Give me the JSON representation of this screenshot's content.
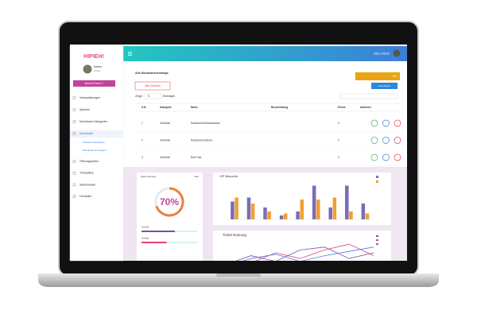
{
  "sidebar": {
    "logo": "HIPIEH!",
    "user": "Admin",
    "status": "Online",
    "button": "Neues Event +",
    "items": [
      "Veranstaltungen",
      "Speisen",
      "Menükarte Kategorien",
      "Menükarte"
    ],
    "subitems": [
      "Übersicht Menükarte",
      "Menükarte hinzufügen"
    ],
    "items_after": [
      "Öffnungszeiten",
      "Tischplätze",
      "Stadionkarte",
      "Hersteller"
    ]
  },
  "header": {
    "greeting": "Hallo, Admin"
  },
  "content": {
    "title": "Alle Menükarteneinträge",
    "top_button": "Ein",
    "delete": "Alle löschen",
    "add": "Hinzufügen",
    "show": "Zeige",
    "show_count": "5",
    "entries": "Einträgen",
    "table": {
      "headers": [
        "S.N.",
        "Kategorie",
        "Name",
        "Beschreibung",
        "Preise",
        "Aktionen"
      ],
      "rows": [
        [
          "1",
          "Getränke",
          "Radeanhai Mineralwasser",
          "0"
        ],
        [
          "2",
          "Getränke",
          "Radeanhai Natural",
          "0"
        ],
        [
          "3",
          "Getränke",
          "Bad Cola",
          "0"
        ]
      ]
    }
  },
  "cards": {
    "apps": {
      "title": "Apps Nutzung",
      "period": "Year",
      "percent": "70%",
      "value": 70,
      "bars": [
        {
          "label": "Test Bar",
          "value": 60,
          "color": "#7b4fa3"
        },
        {
          "label": "Test Bar",
          "value": 45,
          "color": "#e0427a"
        }
      ]
    },
    "vip": {
      "title": "VIP Besuche",
      "ylim": [
        0,
        100
      ],
      "series": [
        {
          "color": "#7b6bb8",
          "values": [
            45,
            55,
            30,
            10,
            20,
            85,
            30,
            85,
            40
          ]
        },
        {
          "color": "#f0a030",
          "values": [
            55,
            40,
            20,
            15,
            50,
            50,
            55,
            20,
            15
          ]
        }
      ]
    },
    "ticket": {
      "title": "Ticket Nutzung",
      "ylim": [
        0,
        100
      ],
      "series": [
        {
          "color": "#7b4fa3",
          "values": [
            10,
            40,
            20,
            60,
            70,
            30,
            50
          ]
        },
        {
          "color": "#e0427a",
          "values": [
            20,
            15,
            50,
            30,
            60,
            80,
            40
          ]
        },
        {
          "color": "#4a7be0",
          "values": [
            5,
            30,
            45,
            20,
            40,
            55,
            70
          ]
        }
      ]
    }
  }
}
